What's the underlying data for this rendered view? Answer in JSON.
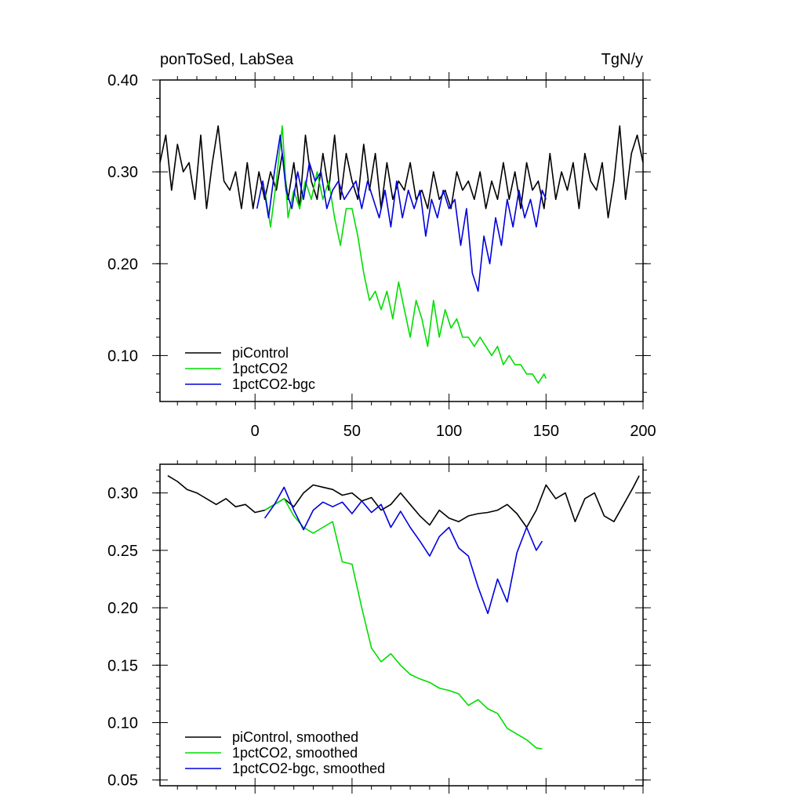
{
  "chart_data": [
    {
      "type": "line",
      "title_left": "ponToSed, LabSea",
      "title_right": "TgN/y",
      "xlabel": "",
      "ylabel": "",
      "xlim": [
        -49,
        200
      ],
      "ylim": [
        0.05,
        0.4
      ],
      "x_ticks": [
        0,
        50,
        100,
        150,
        200
      ],
      "y_ticks": [
        0.1,
        0.2,
        0.3,
        0.4
      ],
      "y_tick_labels": [
        "0.10",
        "0.20",
        "0.30",
        "0.40"
      ],
      "legend_position": "bottom-left",
      "grid": false,
      "series": [
        {
          "name": "piControl",
          "color": "#000000",
          "x": [
            -49,
            -46,
            -43,
            -40,
            -37,
            -34,
            -31,
            -28,
            -25,
            -22,
            -19,
            -16,
            -13,
            -10,
            -7,
            -4,
            -1,
            2,
            5,
            8,
            11,
            14,
            17,
            20,
            23,
            26,
            29,
            32,
            35,
            38,
            41,
            44,
            47,
            50,
            53,
            56,
            59,
            62,
            65,
            68,
            71,
            74,
            77,
            80,
            83,
            86,
            89,
            92,
            95,
            98,
            101,
            104,
            107,
            110,
            113,
            116,
            119,
            122,
            125,
            128,
            131,
            134,
            137,
            140,
            143,
            146,
            149,
            152,
            155,
            158,
            161,
            164,
            167,
            170,
            173,
            176,
            179,
            182,
            185,
            188,
            191,
            194,
            197,
            200
          ],
          "y": [
            0.31,
            0.34,
            0.28,
            0.33,
            0.3,
            0.31,
            0.27,
            0.34,
            0.26,
            0.31,
            0.35,
            0.29,
            0.28,
            0.3,
            0.26,
            0.31,
            0.26,
            0.3,
            0.27,
            0.3,
            0.28,
            0.32,
            0.27,
            0.31,
            0.26,
            0.34,
            0.29,
            0.27,
            0.32,
            0.28,
            0.34,
            0.27,
            0.32,
            0.29,
            0.27,
            0.33,
            0.28,
            0.32,
            0.26,
            0.31,
            0.27,
            0.29,
            0.28,
            0.31,
            0.27,
            0.28,
            0.26,
            0.3,
            0.27,
            0.28,
            0.26,
            0.3,
            0.28,
            0.29,
            0.27,
            0.3,
            0.26,
            0.29,
            0.27,
            0.31,
            0.27,
            0.3,
            0.26,
            0.31,
            0.28,
            0.29,
            0.26,
            0.32,
            0.27,
            0.3,
            0.28,
            0.31,
            0.26,
            0.32,
            0.29,
            0.28,
            0.31,
            0.25,
            0.29,
            0.35,
            0.27,
            0.32,
            0.34,
            0.31
          ]
        },
        {
          "name": "1pctCO2",
          "color": "#00dd00",
          "x": [
            5,
            8,
            11,
            14,
            17,
            20,
            23,
            26,
            29,
            32,
            35,
            38,
            41,
            44,
            47,
            50,
            53,
            56,
            59,
            62,
            65,
            68,
            71,
            74,
            77,
            80,
            83,
            86,
            89,
            92,
            95,
            98,
            101,
            104,
            107,
            110,
            113,
            116,
            119,
            122,
            125,
            128,
            131,
            134,
            137,
            140,
            143,
            146,
            149,
            150
          ],
          "y": [
            0.28,
            0.24,
            0.29,
            0.35,
            0.25,
            0.28,
            0.26,
            0.29,
            0.27,
            0.3,
            0.27,
            0.29,
            0.25,
            0.22,
            0.26,
            0.26,
            0.23,
            0.19,
            0.16,
            0.17,
            0.15,
            0.17,
            0.14,
            0.18,
            0.15,
            0.12,
            0.16,
            0.14,
            0.11,
            0.16,
            0.12,
            0.15,
            0.13,
            0.14,
            0.12,
            0.12,
            0.11,
            0.12,
            0.11,
            0.1,
            0.11,
            0.09,
            0.1,
            0.09,
            0.09,
            0.08,
            0.08,
            0.07,
            0.08,
            0.075
          ]
        },
        {
          "name": "1pctCO2-bgc",
          "color": "#0000dd",
          "x": [
            1,
            4,
            7,
            10,
            13,
            16,
            19,
            22,
            25,
            28,
            31,
            34,
            37,
            40,
            43,
            46,
            49,
            52,
            55,
            58,
            61,
            64,
            67,
            70,
            73,
            76,
            79,
            82,
            85,
            88,
            91,
            94,
            97,
            100,
            103,
            106,
            109,
            112,
            115,
            118,
            121,
            124,
            127,
            130,
            133,
            136,
            139,
            142,
            145,
            148,
            150
          ],
          "y": [
            0.26,
            0.29,
            0.25,
            0.3,
            0.34,
            0.28,
            0.26,
            0.3,
            0.27,
            0.31,
            0.29,
            0.3,
            0.26,
            0.28,
            0.29,
            0.27,
            0.28,
            0.29,
            0.26,
            0.29,
            0.27,
            0.25,
            0.28,
            0.24,
            0.29,
            0.25,
            0.28,
            0.26,
            0.28,
            0.23,
            0.27,
            0.25,
            0.28,
            0.26,
            0.27,
            0.22,
            0.26,
            0.19,
            0.17,
            0.23,
            0.2,
            0.25,
            0.22,
            0.27,
            0.24,
            0.28,
            0.25,
            0.27,
            0.24,
            0.28,
            0.27
          ]
        }
      ]
    },
    {
      "type": "line",
      "xlabel": "",
      "ylabel": "",
      "xlim": [
        -49,
        200
      ],
      "ylim": [
        0.045,
        0.325
      ],
      "x_ticks": [
        0,
        50,
        100,
        150,
        200
      ],
      "y_ticks": [
        0.05,
        0.1,
        0.15,
        0.2,
        0.25,
        0.3
      ],
      "y_tick_labels": [
        "0.05",
        "0.10",
        "0.15",
        "0.20",
        "0.25",
        "0.30"
      ],
      "legend_position": "bottom-left",
      "grid": false,
      "series": [
        {
          "name": "piControl, smoothed",
          "color": "#000000",
          "x": [
            -45,
            -40,
            -35,
            -30,
            -25,
            -20,
            -15,
            -10,
            -5,
            0,
            5,
            10,
            15,
            20,
            25,
            30,
            35,
            40,
            45,
            50,
            55,
            60,
            65,
            70,
            75,
            80,
            85,
            90,
            95,
            100,
            105,
            110,
            115,
            120,
            125,
            130,
            135,
            140,
            145,
            150,
            155,
            160,
            165,
            170,
            175,
            180,
            185,
            190,
            195,
            198
          ],
          "y": [
            0.315,
            0.31,
            0.303,
            0.3,
            0.295,
            0.29,
            0.295,
            0.288,
            0.29,
            0.283,
            0.285,
            0.29,
            0.295,
            0.288,
            0.3,
            0.307,
            0.305,
            0.303,
            0.298,
            0.3,
            0.293,
            0.296,
            0.285,
            0.29,
            0.3,
            0.29,
            0.28,
            0.272,
            0.285,
            0.278,
            0.275,
            0.28,
            0.282,
            0.283,
            0.285,
            0.29,
            0.282,
            0.27,
            0.285,
            0.307,
            0.295,
            0.3,
            0.275,
            0.295,
            0.3,
            0.28,
            0.275,
            0.29,
            0.305,
            0.315
          ]
        },
        {
          "name": "1pctCO2, smoothed",
          "color": "#00dd00",
          "x": [
            5,
            10,
            15,
            20,
            25,
            30,
            35,
            40,
            45,
            50,
            55,
            60,
            65,
            70,
            75,
            80,
            85,
            90,
            95,
            100,
            105,
            110,
            115,
            120,
            125,
            130,
            135,
            140,
            145,
            148
          ],
          "y": [
            0.285,
            0.29,
            0.295,
            0.28,
            0.27,
            0.265,
            0.27,
            0.275,
            0.24,
            0.238,
            0.2,
            0.165,
            0.153,
            0.16,
            0.15,
            0.142,
            0.138,
            0.135,
            0.13,
            0.128,
            0.125,
            0.115,
            0.12,
            0.112,
            0.108,
            0.095,
            0.09,
            0.085,
            0.078,
            0.077
          ]
        },
        {
          "name": "1pctCO2-bgc, smoothed",
          "color": "#0000dd",
          "x": [
            5,
            10,
            15,
            20,
            25,
            30,
            35,
            40,
            45,
            50,
            55,
            60,
            65,
            70,
            75,
            80,
            85,
            90,
            95,
            100,
            105,
            110,
            115,
            120,
            125,
            130,
            135,
            140,
            145,
            148
          ],
          "y": [
            0.278,
            0.29,
            0.305,
            0.285,
            0.268,
            0.285,
            0.292,
            0.288,
            0.292,
            0.282,
            0.293,
            0.283,
            0.29,
            0.27,
            0.284,
            0.27,
            0.258,
            0.245,
            0.262,
            0.27,
            0.252,
            0.245,
            0.218,
            0.195,
            0.225,
            0.205,
            0.248,
            0.27,
            0.25,
            0.258
          ]
        }
      ]
    }
  ]
}
